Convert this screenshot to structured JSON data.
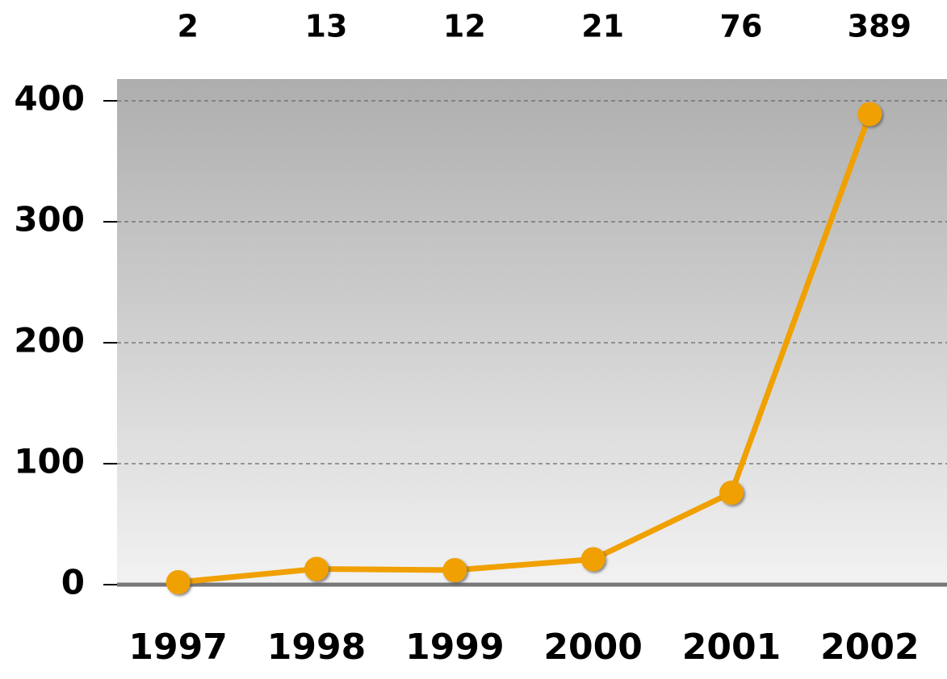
{
  "chart_data": {
    "type": "line",
    "categories": [
      "1997",
      "1998",
      "1999",
      "2000",
      "2001",
      "2002"
    ],
    "values": [
      2,
      13,
      12,
      21,
      76,
      389
    ],
    "color": "#f0a000",
    "ylim": [
      0,
      400
    ],
    "yticks": [
      0,
      100,
      200,
      300,
      400
    ],
    "grid": true
  }
}
